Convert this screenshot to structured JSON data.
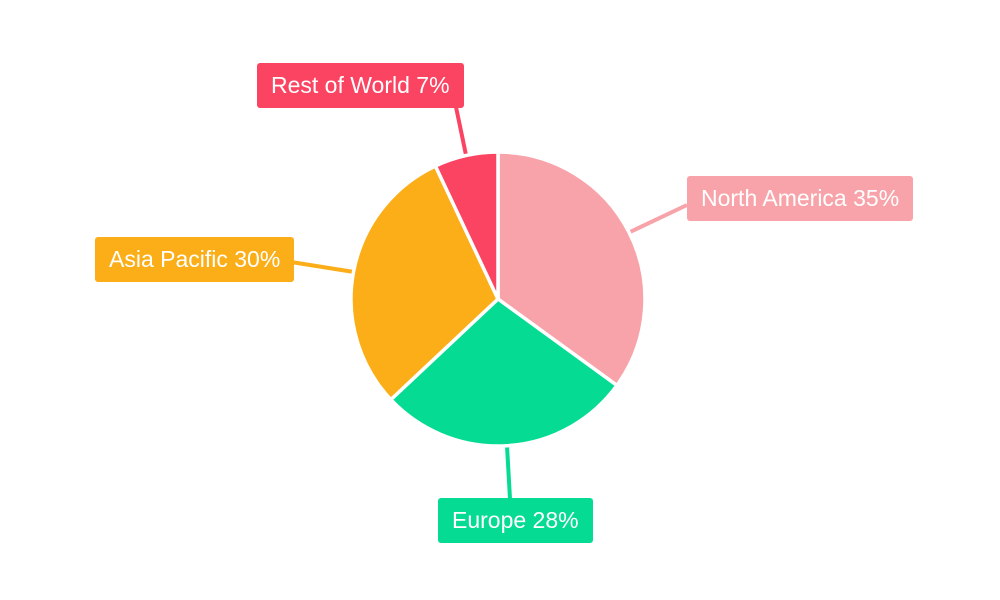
{
  "chart_data": {
    "type": "pie",
    "unit": "%",
    "total": 100,
    "start_angle_deg": 0,
    "direction": "clockwise",
    "background": "#ffffff",
    "label_text_color": "#ffffff",
    "slice_gap_color": "#ffffff",
    "legend_position": "none",
    "labels_style": "outside-boxes-with-leader-lines",
    "slices": [
      {
        "label": "North America",
        "value": 35,
        "display": "North America 35%",
        "color": "#F8A3A9"
      },
      {
        "label": "Europe",
        "value": 28,
        "display": "Europe 28%",
        "color": "#06DB94"
      },
      {
        "label": "Asia Pacific",
        "value": 30,
        "display": "Asia Pacific 30%",
        "color": "#FBAE17"
      },
      {
        "label": "Rest of World",
        "value": 7,
        "display": "Rest of World 7%",
        "color": "#FB4462"
      }
    ]
  }
}
